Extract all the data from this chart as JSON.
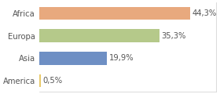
{
  "categories": [
    "America",
    "Asia",
    "Europa",
    "Africa"
  ],
  "values": [
    0.5,
    19.9,
    35.3,
    44.3
  ],
  "labels": [
    "0,5%",
    "19,9%",
    "35,3%",
    "44,3%"
  ],
  "bar_colors": [
    "#e8c96a",
    "#6e8fc4",
    "#b5c98a",
    "#e8a97e"
  ],
  "background_color": "#ffffff",
  "xlim": [
    0,
    52
  ],
  "label_fontsize": 7.2,
  "tick_fontsize": 7.2,
  "bar_height": 0.58
}
